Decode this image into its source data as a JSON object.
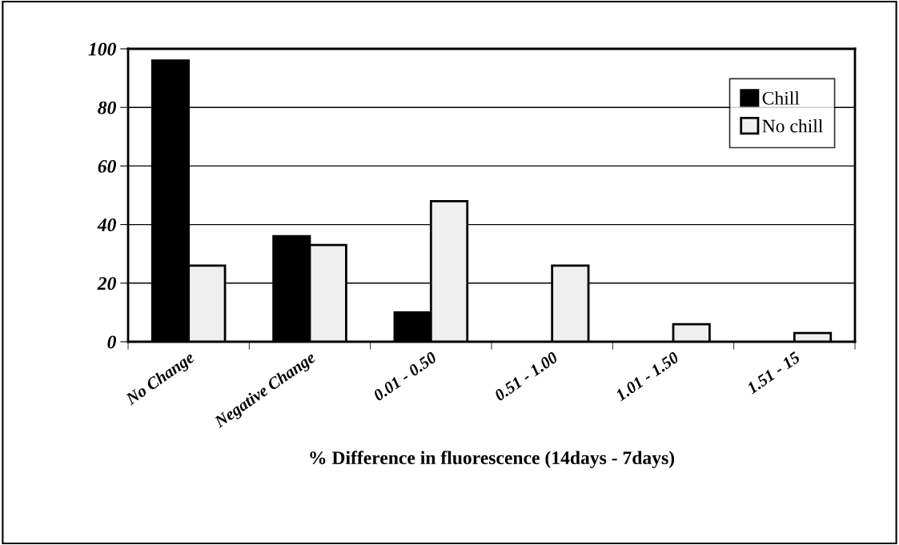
{
  "chart_data": {
    "type": "bar",
    "xlabel": "% Difference in fluorescence (14days - 7days)",
    "categories": [
      "No Change",
      "Negative Change",
      "0.01 - 0.50",
      "0.51 - 1.00",
      "1.01 - 1.50",
      "1.51 - 15"
    ],
    "series": [
      {
        "name": "Chill",
        "color": "#000000",
        "values": [
          96,
          36,
          10,
          null,
          null,
          null
        ]
      },
      {
        "name": "No chill",
        "color": "#efefef",
        "values": [
          26,
          33,
          48,
          26,
          6,
          3
        ]
      }
    ],
    "ylim": [
      0,
      100
    ],
    "yticks": [
      0,
      20,
      40,
      60,
      80,
      100
    ],
    "grid": "y",
    "legend": "top right"
  }
}
